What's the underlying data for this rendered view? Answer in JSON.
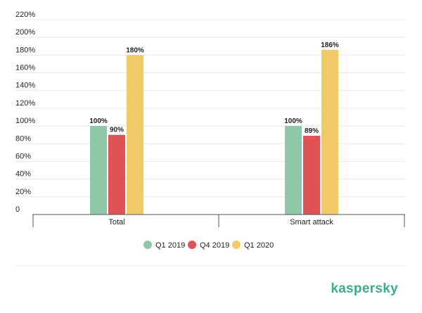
{
  "colors": {
    "q1_2019": "#8fc8a6",
    "q4_2019": "#df5356",
    "q1_2020": "#f0cb68",
    "grid": "#e8e8e8",
    "axis": "#555555",
    "brand": "#3dab8d"
  },
  "brand": {
    "logo_text": "kaspersky"
  },
  "chart_data": {
    "type": "bar",
    "title": "",
    "xlabel": "",
    "ylabel": "",
    "categories": [
      "Total",
      "Smart attack"
    ],
    "series": [
      {
        "name": "Q1 2019",
        "values": [
          100,
          100
        ],
        "labels": [
          "100%",
          "100%"
        ],
        "color": "#8fc8a6"
      },
      {
        "name": "Q4 2019",
        "values": [
          90,
          89
        ],
        "labels": [
          "90%",
          "89%"
        ],
        "color": "#df5356"
      },
      {
        "name": "Q1 2020",
        "values": [
          180,
          186
        ],
        "labels": [
          "180%",
          "186%"
        ],
        "color": "#f0cb68"
      }
    ],
    "ylim": [
      0,
      220
    ],
    "yticks": [
      0,
      20,
      40,
      60,
      80,
      100,
      120,
      140,
      160,
      180,
      200,
      220
    ],
    "ytick_labels": [
      "0",
      "20%",
      "40%",
      "60%",
      "80%",
      "100%",
      "120%",
      "140%",
      "160%",
      "180%",
      "200%",
      "220%"
    ],
    "grid": true,
    "legend_position": "bottom-center"
  }
}
